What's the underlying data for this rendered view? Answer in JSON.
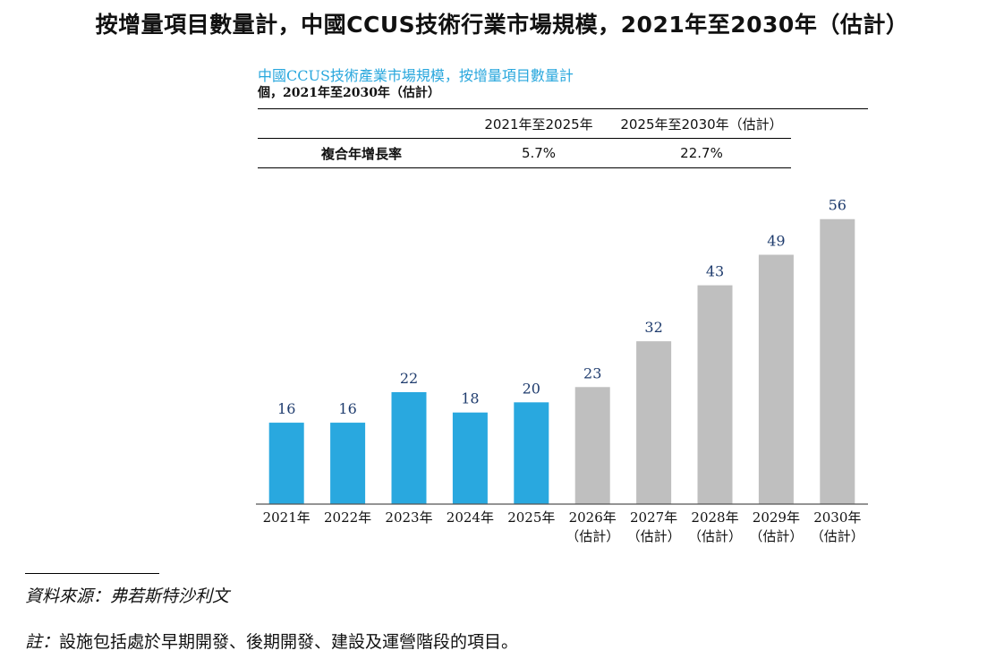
{
  "title": "按增量項目數量計，中國CCUS技術行業市場規模，2021年至2030年（估計）",
  "chart_subtitle": "中國CCUS技術產業市場規模，按增量項目數量計",
  "unit_line": "個，2021年至2030年（估計）",
  "cagr_table": {
    "headers": [
      "",
      "2021年至2025年",
      "2025年至2030年（估計）"
    ],
    "row": {
      "label": "複合年增長率",
      "values": [
        "5.7%",
        "22.7%"
      ]
    }
  },
  "chart_data": {
    "type": "bar",
    "categories": [
      "2021年",
      "2022年",
      "2023年",
      "2024年",
      "2025年",
      "2026年",
      "2027年",
      "2028年",
      "2029年",
      "2030年"
    ],
    "category_sublabels": [
      "",
      "",
      "",
      "",
      "",
      "（估計）",
      "（估計）",
      "（估計）",
      "（估計）",
      "（估計）"
    ],
    "values": [
      16,
      16,
      22,
      18,
      20,
      23,
      32,
      43,
      49,
      56
    ],
    "estimated": [
      false,
      false,
      false,
      false,
      false,
      true,
      true,
      true,
      true,
      true
    ],
    "colors": {
      "actual": "#29a8df",
      "estimate": "#bfbfbf",
      "value_label": "#1f3c6e",
      "axis": "#555555"
    },
    "ylim": [
      0,
      60
    ],
    "xlabel": "",
    "ylabel": "",
    "grid": false,
    "legend": "none"
  },
  "source_text": "資料來源：弗若斯特沙利文",
  "note_label": "註：",
  "note_text": "設施包括處於早期開發、後期開發、建設及運營階段的項目。"
}
